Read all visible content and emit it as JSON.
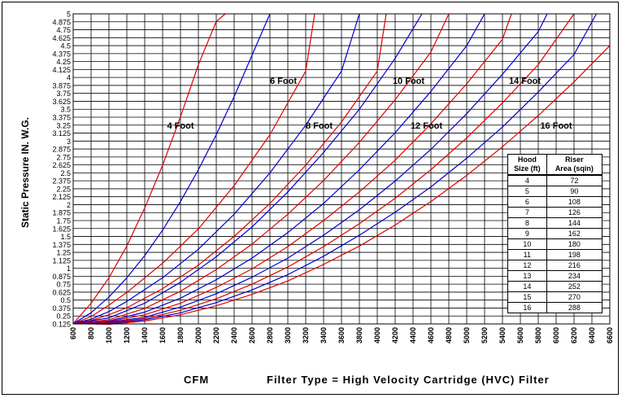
{
  "chart_data": {
    "type": "line",
    "title": "",
    "xlabel": "CFM",
    "ylabel": "Static Pressure IN. W.G.",
    "note": "Filter Type = High Velocity Cartridge (HVC) Filter",
    "xlim": [
      600,
      6600
    ],
    "ylim": [
      0.125,
      5
    ],
    "x_ticks": [
      600,
      800,
      1000,
      1200,
      1400,
      1600,
      1800,
      2000,
      2200,
      2400,
      2600,
      2800,
      3000,
      3200,
      3400,
      3600,
      3800,
      4000,
      4200,
      4400,
      4600,
      4800,
      5000,
      5200,
      5400,
      5600,
      5800,
      6000,
      6200,
      6400,
      6600
    ],
    "y_ticks": [
      "0.125",
      "0.25",
      "0.375",
      "0.5",
      "0.625",
      "0.75",
      "0.875",
      "1",
      "1.125",
      "1.25",
      "1.375",
      "1.5",
      "1.625",
      "1.75",
      "1.875",
      "2",
      "2.125",
      "2.25",
      "2.375",
      "2.5",
      "2.625",
      "2.75",
      "2.875",
      "3",
      "3.125",
      "3.25",
      "3.375",
      "3.5",
      "3.625",
      "3.75",
      "3.875",
      "4",
      "4.125",
      "4.25",
      "4.375",
      "4.5",
      "4.625",
      "4.75",
      "4.875",
      "5"
    ],
    "grid": true,
    "series": [
      {
        "hood": 4,
        "color": "#e00000",
        "x": [
          600,
          800,
          1000,
          1200,
          1400,
          1600,
          1800,
          2000,
          2200,
          2300
        ],
        "y": [
          0.13,
          0.45,
          0.85,
          1.35,
          1.95,
          2.62,
          3.38,
          4.2,
          4.88,
          5
        ]
      },
      {
        "hood": 5,
        "color": "#0000d0",
        "x": [
          600,
          800,
          1000,
          1200,
          1400,
          1600,
          1800,
          2000,
          2200,
          2400,
          2600,
          2800
        ],
        "y": [
          0.13,
          0.3,
          0.55,
          0.85,
          1.2,
          1.6,
          2.05,
          2.55,
          3.1,
          3.7,
          4.35,
          5
        ]
      },
      {
        "hood": 6,
        "color": "#e00000",
        "x": [
          600,
          800,
          1000,
          1200,
          1600,
          2000,
          2400,
          2800,
          3200,
          3300
        ],
        "y": [
          0.13,
          0.24,
          0.42,
          0.62,
          1.08,
          1.62,
          2.3,
          3.1,
          4.1,
          5
        ]
      },
      {
        "hood": 7,
        "color": "#0000d0",
        "x": [
          600,
          800,
          1000,
          1200,
          1600,
          2000,
          2400,
          2800,
          3200,
          3600,
          3800
        ],
        "y": [
          0.13,
          0.2,
          0.32,
          0.48,
          0.85,
          1.3,
          1.85,
          2.5,
          3.25,
          4.1,
          5
        ]
      },
      {
        "hood": 8,
        "color": "#e00000",
        "x": [
          600,
          800,
          1000,
          1200,
          1600,
          2000,
          2400,
          2800,
          3200,
          3600,
          4000,
          4100
        ],
        "y": [
          0.13,
          0.18,
          0.27,
          0.38,
          0.68,
          1.05,
          1.5,
          2.02,
          2.62,
          3.3,
          4.1,
          5
        ]
      },
      {
        "hood": 9,
        "color": "#0000d0",
        "x": [
          600,
          1000,
          1400,
          1800,
          2200,
          2600,
          3000,
          3400,
          3800,
          4200,
          4500
        ],
        "y": [
          0.13,
          0.22,
          0.45,
          0.78,
          1.18,
          1.65,
          2.2,
          2.82,
          3.5,
          4.3,
          5
        ]
      },
      {
        "hood": 10,
        "color": "#e00000",
        "x": [
          600,
          1000,
          1400,
          1800,
          2200,
          2600,
          3000,
          3400,
          3800,
          4200,
          4600,
          4800
        ],
        "y": [
          0.13,
          0.19,
          0.37,
          0.64,
          0.98,
          1.38,
          1.85,
          2.38,
          2.98,
          3.65,
          4.4,
          5
        ]
      },
      {
        "hood": 11,
        "color": "#0000d0",
        "x": [
          600,
          1000,
          1400,
          1800,
          2200,
          2600,
          3000,
          3400,
          3800,
          4200,
          4600,
          5000,
          5200
        ],
        "y": [
          0.13,
          0.17,
          0.31,
          0.53,
          0.82,
          1.16,
          1.56,
          2.02,
          2.55,
          3.13,
          3.78,
          4.5,
          5
        ]
      },
      {
        "hood": 12,
        "color": "#e00000",
        "x": [
          600,
          1000,
          1400,
          1800,
          2200,
          2600,
          3000,
          3400,
          3800,
          4200,
          4600,
          5000,
          5400,
          5500
        ],
        "y": [
          0.13,
          0.16,
          0.27,
          0.45,
          0.7,
          0.99,
          1.34,
          1.75,
          2.2,
          2.7,
          3.27,
          3.9,
          4.6,
          5
        ]
      },
      {
        "hood": 13,
        "color": "#0000d0",
        "x": [
          600,
          1000,
          1400,
          1800,
          2200,
          2600,
          3000,
          3400,
          3800,
          4200,
          4600,
          5000,
          5400,
          5800,
          5900
        ],
        "y": [
          0.13,
          0.15,
          0.23,
          0.39,
          0.6,
          0.86,
          1.16,
          1.52,
          1.92,
          2.37,
          2.87,
          3.43,
          4.05,
          4.72,
          5
        ]
      },
      {
        "hood": 14,
        "color": "#e00000",
        "x": [
          600,
          1000,
          1400,
          1800,
          2200,
          2600,
          3000,
          3400,
          3800,
          4200,
          4600,
          5000,
          5400,
          5800,
          6200
        ],
        "y": [
          0.13,
          0.14,
          0.21,
          0.34,
          0.52,
          0.75,
          1.02,
          1.34,
          1.7,
          2.1,
          2.55,
          3.05,
          3.6,
          4.2,
          5
        ]
      },
      {
        "hood": 15,
        "color": "#0000d0",
        "x": [
          600,
          1000,
          1400,
          1800,
          2200,
          2600,
          3000,
          3400,
          3800,
          4200,
          4600,
          5000,
          5400,
          5800,
          6200,
          6450
        ],
        "y": [
          0.13,
          0.13,
          0.19,
          0.3,
          0.46,
          0.66,
          0.9,
          1.19,
          1.52,
          1.88,
          2.28,
          2.73,
          3.22,
          3.77,
          4.36,
          5
        ]
      },
      {
        "hood": 16,
        "color": "#e00000",
        "x": [
          600,
          1000,
          1400,
          1800,
          2200,
          2600,
          3000,
          3400,
          3800,
          4200,
          4600,
          5000,
          5400,
          5800,
          6200,
          6600
        ],
        "y": [
          0.13,
          0.12,
          0.17,
          0.27,
          0.41,
          0.59,
          0.8,
          1.06,
          1.35,
          1.68,
          2.05,
          2.46,
          2.91,
          3.4,
          3.93,
          4.5
        ]
      }
    ],
    "annotations": [
      {
        "text": "4 Foot",
        "x": 1800,
        "y": 3.25
      },
      {
        "text": "6 Foot",
        "x": 2950,
        "y": 3.95
      },
      {
        "text": "8 Foot",
        "x": 3350,
        "y": 3.25
      },
      {
        "text": "10 Foot",
        "x": 4350,
        "y": 3.95
      },
      {
        "text": "12 Foot",
        "x": 4550,
        "y": 3.25
      },
      {
        "text": "14 Foot",
        "x": 5650,
        "y": 3.95
      },
      {
        "text": "16 Foot",
        "x": 6000,
        "y": 3.25
      }
    ],
    "table": {
      "headers": [
        [
          "Hood",
          "Size (ft)"
        ],
        [
          "Riser",
          "Area (sqin)"
        ]
      ],
      "rows": [
        [
          "4",
          "72"
        ],
        [
          "5",
          "90"
        ],
        [
          "6",
          "108"
        ],
        [
          "7",
          "126"
        ],
        [
          "8",
          "144"
        ],
        [
          "9",
          "162"
        ],
        [
          "10",
          "180"
        ],
        [
          "11",
          "198"
        ],
        [
          "12",
          "216"
        ],
        [
          "13",
          "234"
        ],
        [
          "14",
          "252"
        ],
        [
          "15",
          "270"
        ],
        [
          "16",
          "288"
        ]
      ]
    }
  }
}
